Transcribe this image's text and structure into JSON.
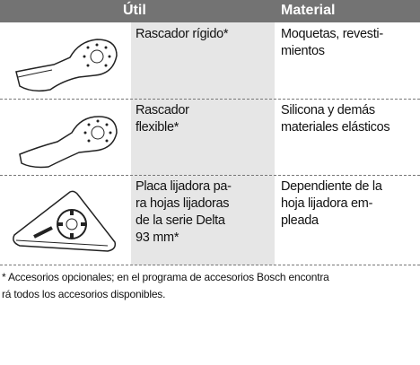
{
  "table": {
    "headers": [
      "Útil",
      "Material"
    ],
    "rows": [
      {
        "tool": [
          "Rascador rígido*"
        ],
        "material": [
          "Moquetas, revesti-",
          "mientos"
        ]
      },
      {
        "tool": [
          "Rascador",
          "flexible*"
        ],
        "material": [
          "Silicona y demás",
          "materiales elásticos"
        ]
      },
      {
        "tool": [
          "Placa lijadora pa-",
          "ra hojas lijadoras",
          "de la serie Delta",
          "93 mm*"
        ],
        "material": [
          "Dependiente de la",
          "hoja lijadora em-",
          "pleada"
        ]
      }
    ]
  },
  "footnote": [
    "* Accesorios opcionales; en el programa de accesorios Bosch encontra",
    "rá todos los accesorios disponibles."
  ]
}
